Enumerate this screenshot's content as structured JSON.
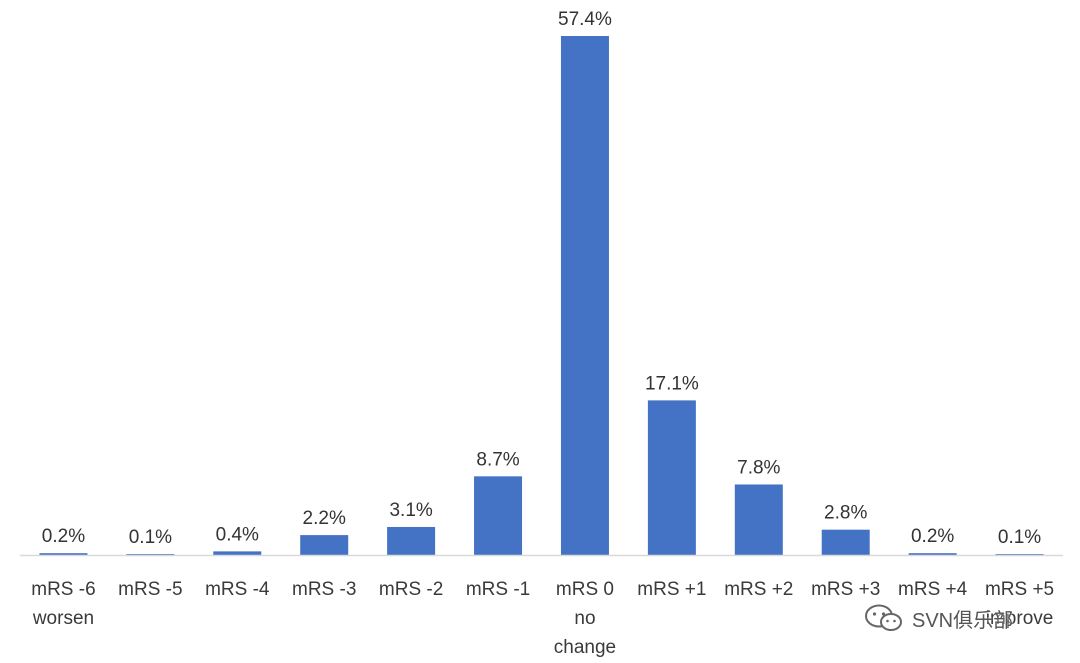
{
  "chart_data": {
    "type": "bar",
    "categories": [
      [
        "mRS -6",
        "worsen"
      ],
      [
        "mRS -5"
      ],
      [
        "mRS -4"
      ],
      [
        "mRS -3"
      ],
      [
        "mRS -2"
      ],
      [
        "mRS -1"
      ],
      [
        "mRS 0",
        "no",
        "change"
      ],
      [
        "mRS +1"
      ],
      [
        "mRS +2"
      ],
      [
        "mRS +3"
      ],
      [
        "mRS +4"
      ],
      [
        "mRS +5",
        "improve"
      ]
    ],
    "values": [
      0.2,
      0.1,
      0.4,
      2.2,
      3.1,
      8.7,
      57.4,
      17.1,
      7.8,
      2.8,
      0.2,
      0.1
    ],
    "labels": [
      "0.2%",
      "0.1%",
      "0.4%",
      "2.2%",
      "3.1%",
      "8.7%",
      "57.4%",
      "17.1%",
      "7.8%",
      "2.8%",
      "0.2%",
      "0.1%"
    ],
    "ylim": [
      0,
      57.4
    ],
    "bar_color": "#4472C4",
    "axis_color": "#d9d9d9",
    "grid": false,
    "legend": "none"
  },
  "watermark": {
    "text": "SVN俱乐部",
    "icon": "wechat-icon"
  }
}
